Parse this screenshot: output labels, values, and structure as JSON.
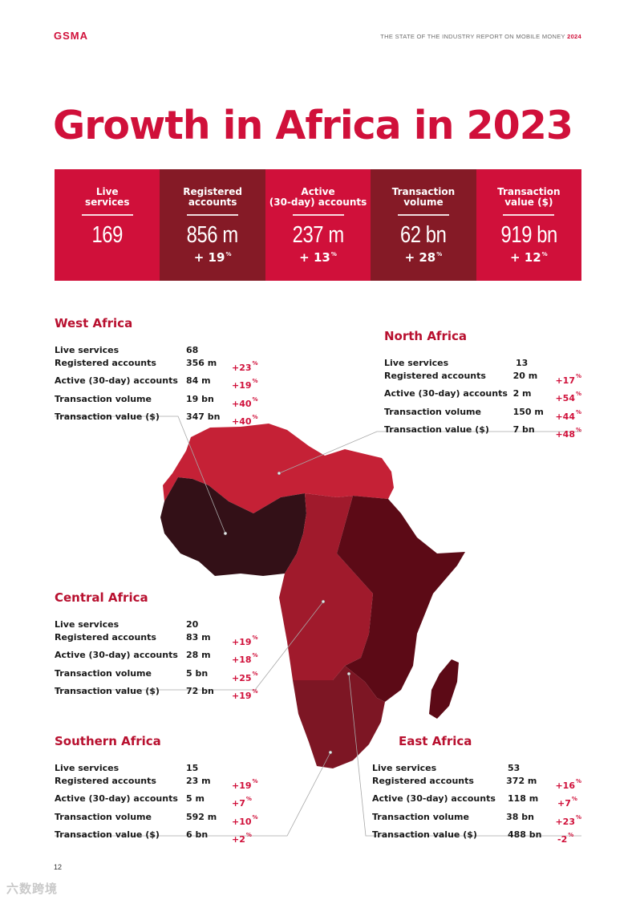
{
  "header": {
    "logo": "GSMA",
    "report_title": "THE STATE OF THE INDUSTRY REPORT ON MOBILE MONEY",
    "report_year": "2024"
  },
  "title": "Growth in Africa in 2023",
  "colors": {
    "accent_red": "#d0103a",
    "dark_red": "#851a26",
    "map_north": "#c52136",
    "map_west": "#331017",
    "map_central": "#a01a2c",
    "map_east": "#5c0a16",
    "map_southern": "#7d1624"
  },
  "summary": [
    {
      "label": "Live services",
      "value": "169",
      "growth": ""
    },
    {
      "label": "Registered accounts",
      "value": "856 m",
      "growth": "+ 19"
    },
    {
      "label": "Active (30-day) accounts",
      "value": "237 m",
      "growth": "+ 13"
    },
    {
      "label": "Transaction volume",
      "value": "62 bn",
      "growth": "+ 28"
    },
    {
      "label": "Transaction value ($)",
      "value": "919 bn",
      "growth": "+ 12"
    }
  ],
  "pct_sign": "%",
  "regions": {
    "west": {
      "name": "West Africa",
      "rows": [
        {
          "label": "Live services",
          "value": "68",
          "growth": ""
        },
        {
          "label": "Registered accounts",
          "value": "356 m",
          "growth": "+23"
        },
        {
          "label": "Active (30-day) accounts",
          "value": "84 m",
          "growth": "+19"
        },
        {
          "label": "Transaction volume",
          "value": "19 bn",
          "growth": "+40"
        },
        {
          "label": "Transaction value ($)",
          "value": "347 bn",
          "growth": "+40"
        }
      ]
    },
    "north": {
      "name": "North Africa",
      "rows": [
        {
          "label": "Live services",
          "value": "13",
          "growth": ""
        },
        {
          "label": "Registered accounts",
          "value": "20 m",
          "growth": "+17"
        },
        {
          "label": "Active (30-day) accounts",
          "value": "2 m",
          "growth": "+54"
        },
        {
          "label": "Transaction volume",
          "value": "150 m",
          "growth": "+44"
        },
        {
          "label": "Transaction value ($)",
          "value": "7 bn",
          "growth": "+48"
        }
      ]
    },
    "central": {
      "name": "Central Africa",
      "rows": [
        {
          "label": "Live services",
          "value": "20",
          "growth": ""
        },
        {
          "label": "Registered accounts",
          "value": "83 m",
          "growth": "+19"
        },
        {
          "label": "Active (30-day) accounts",
          "value": "28 m",
          "growth": "+18"
        },
        {
          "label": "Transaction volume",
          "value": "5 bn",
          "growth": "+25"
        },
        {
          "label": "Transaction value ($)",
          "value": "72 bn",
          "growth": "+19"
        }
      ]
    },
    "southern": {
      "name": "Southern Africa",
      "rows": [
        {
          "label": "Live services",
          "value": "15",
          "growth": ""
        },
        {
          "label": "Registered accounts",
          "value": "23 m",
          "growth": "+19"
        },
        {
          "label": "Active (30-day) accounts",
          "value": "5 m",
          "growth": "+7"
        },
        {
          "label": "Transaction volume",
          "value": "592 m",
          "growth": "+10"
        },
        {
          "label": "Transaction value ($)",
          "value": "6 bn",
          "growth": "+2"
        }
      ]
    },
    "east": {
      "name": "East Africa",
      "rows": [
        {
          "label": "Live services",
          "value": "53",
          "growth": ""
        },
        {
          "label": "Registered accounts",
          "value": "372 m",
          "growth": "+16"
        },
        {
          "label": "Active (30-day) accounts",
          "value": "118 m",
          "growth": "+7"
        },
        {
          "label": "Transaction volume",
          "value": "38 bn",
          "growth": "+23"
        },
        {
          "label": "Transaction value ($)",
          "value": "488 bn",
          "growth": "-2"
        }
      ]
    }
  },
  "page_number": "12",
  "watermark": "六数跨境"
}
